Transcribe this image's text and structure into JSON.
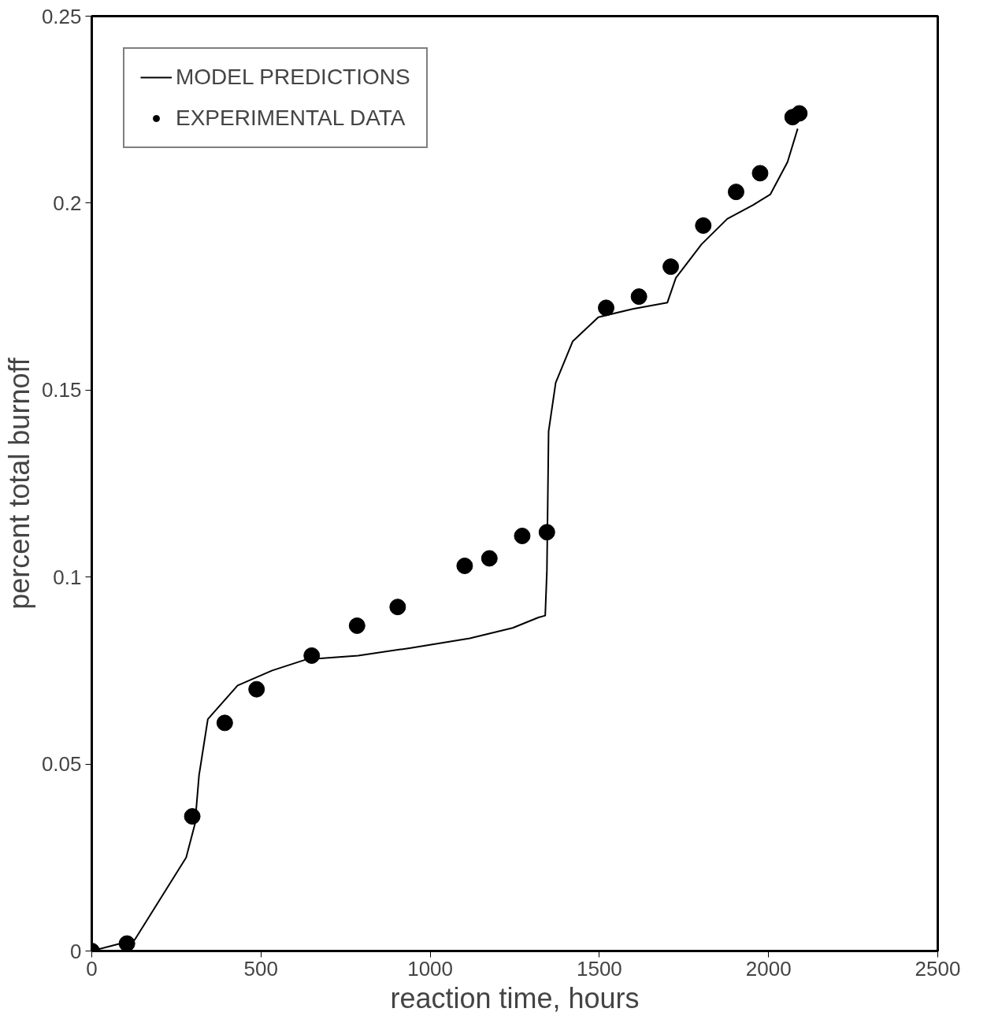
{
  "chart_data": {
    "type": "scatter",
    "xlabel": "reaction time, hours",
    "ylabel": "percent total burnoff",
    "xlim": [
      0,
      2500
    ],
    "ylim": [
      0,
      0.25
    ],
    "xticks": [
      0,
      500,
      1000,
      1500,
      2000,
      2500
    ],
    "yticks": [
      0,
      0.05,
      0.1,
      0.15,
      0.2,
      0.25
    ],
    "grid": false,
    "legend": "top left",
    "series": [
      {
        "name": "MODEL PREDICTIONS",
        "type": "line",
        "color": "#000000",
        "x": [
          0,
          127,
          203,
          279,
          305,
          317,
          343,
          431,
          533,
          635,
          787,
          939,
          1117,
          1244,
          1320,
          1340,
          1345,
          1350,
          1371,
          1421,
          1497,
          1599,
          1701,
          1726,
          1802,
          1878,
          1954,
          2005,
          2056,
          2086
        ],
        "values": [
          0,
          0.003,
          0.014,
          0.025,
          0.034,
          0.047,
          0.062,
          0.071,
          0.075,
          0.078,
          0.079,
          0.081,
          0.0836,
          0.0864,
          0.0892,
          0.0897,
          0.1017,
          0.139,
          0.152,
          0.163,
          0.1695,
          0.1717,
          0.1734,
          0.18,
          0.189,
          0.1958,
          0.1995,
          0.2023,
          0.211,
          0.2199
        ]
      },
      {
        "name": "EXPERIMENTAL DATA",
        "marker": "circle",
        "color": "#000000",
        "x": [
          0,
          104,
          297,
          393,
          487,
          650,
          784,
          904,
          1102,
          1175,
          1272,
          1345,
          1520,
          1617,
          1711,
          1807,
          1904,
          1975,
          2071,
          2091
        ],
        "values": [
          0,
          0.002,
          0.036,
          0.061,
          0.07,
          0.079,
          0.087,
          0.092,
          0.103,
          0.105,
          0.111,
          0.112,
          0.172,
          0.175,
          0.183,
          0.194,
          0.203,
          0.208,
          0.223,
          0.224
        ]
      }
    ]
  }
}
